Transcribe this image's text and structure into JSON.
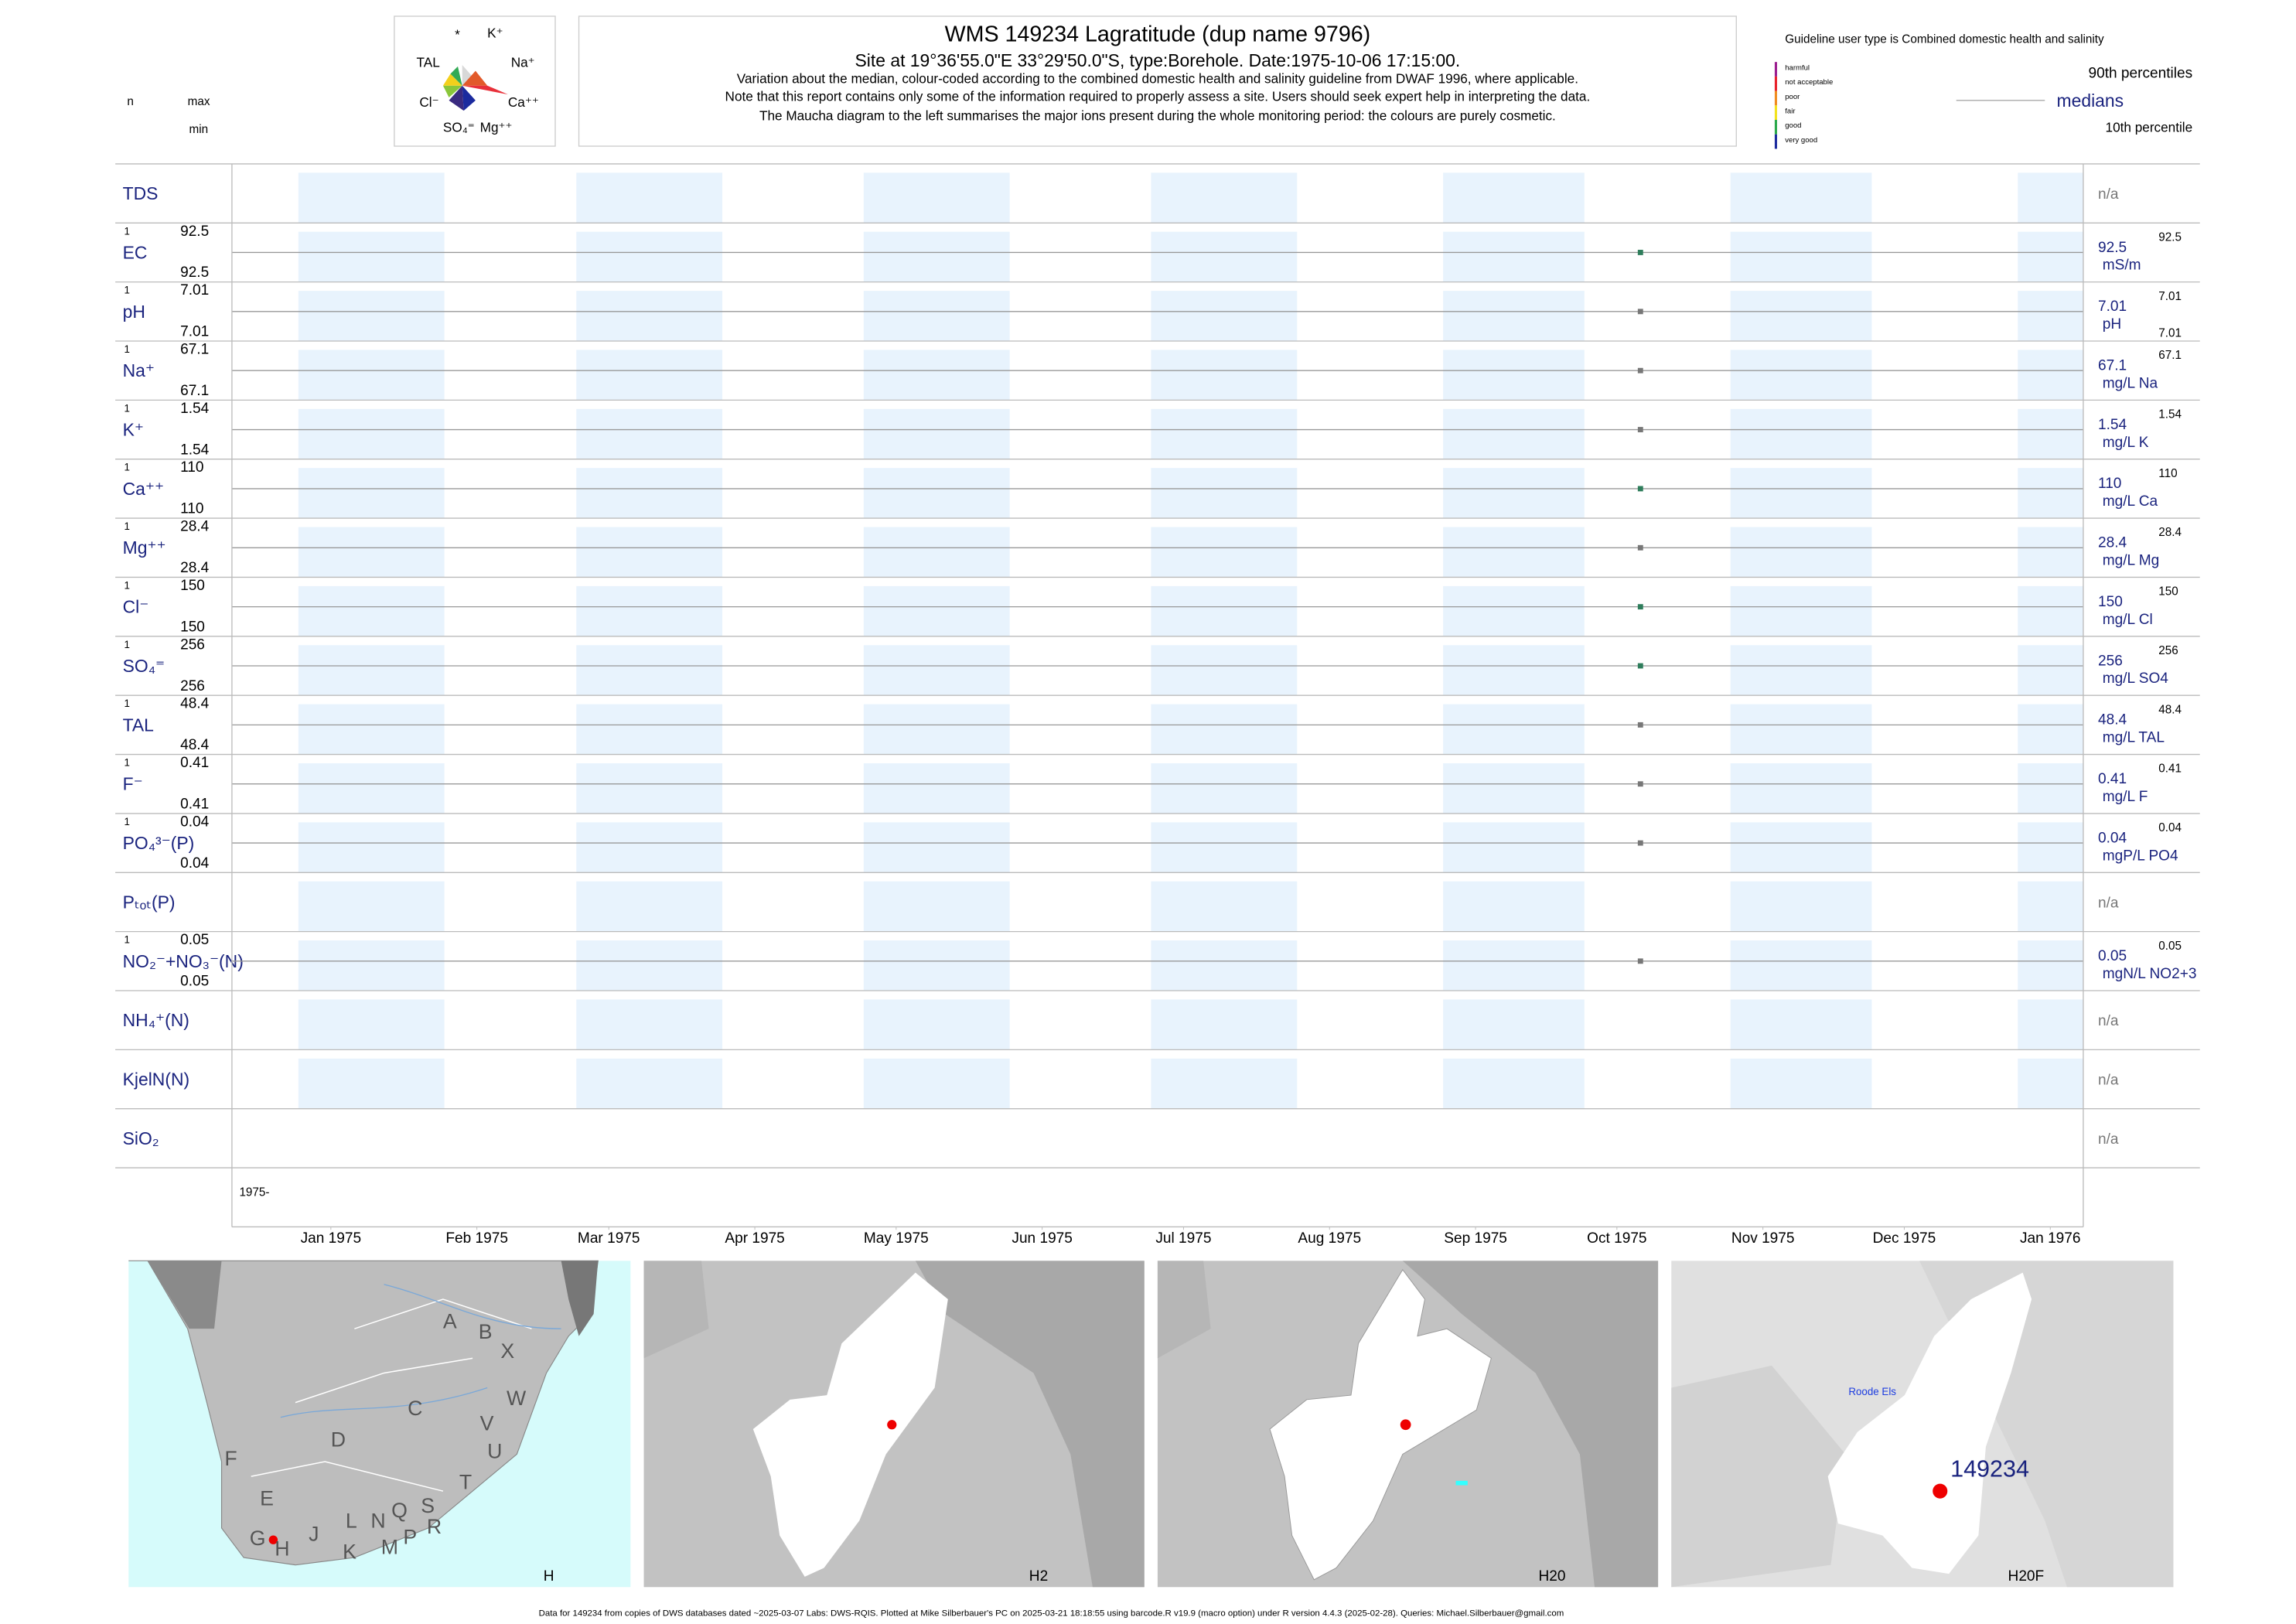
{
  "header": {
    "title": "WMS 149234  Lagratitude (dup name 9796)",
    "subtitle": "Site at 19°36'55.0\"E 33°29'50.0\"S, type:Borehole. Date:1975-10-06 17:15:00.",
    "notes": [
      "Variation about the median,  colour-coded according to the combined domestic health and salinity guideline from DWAF 1996, where applicable.",
      "Note that this report contains only some of the information required to properly assess a site. Users should seek expert help in interpreting the data.",
      "The Maucha diagram to the left summarises the major ions present during the whole monitoring period: the colours are purely cosmetic."
    ],
    "col_n": "n",
    "col_max": "max",
    "col_min": "min"
  },
  "maucha": {
    "labels": [
      "*",
      "K⁺",
      "TAL",
      "Na⁺",
      "Cl⁻",
      "Ca⁺⁺",
      "SO₄⁼",
      "Mg⁺⁺"
    ]
  },
  "guideline": {
    "title": "Guideline user type is Combined domestic health and salinity",
    "classes": [
      {
        "name": "harmful",
        "color": "#9b1d8f"
      },
      {
        "name": "not acceptable",
        "color": "#e8202a"
      },
      {
        "name": "poor",
        "color": "#f08c1e"
      },
      {
        "name": "fair",
        "color": "#f3e21b"
      },
      {
        "name": "good",
        "color": "#2aa84a"
      },
      {
        "name": "very good",
        "color": "#1b2a9e"
      }
    ],
    "p90": "90th percentiles",
    "median": "medians",
    "p10": "10th percentile"
  },
  "chart_data": {
    "type": "panels",
    "xlim": [
      "1974-12-11",
      "1976-01-08"
    ],
    "xticks": [
      {
        "value": "1975-01-01",
        "label": "Jan 1975"
      },
      {
        "value": "1975-02-01",
        "label": "Feb 1975"
      },
      {
        "value": "1975-03-01",
        "label": "Mar 1975"
      },
      {
        "value": "1975-04-01",
        "label": "Apr 1975"
      },
      {
        "value": "1975-05-01",
        "label": "May 1975"
      },
      {
        "value": "1975-06-01",
        "label": "Jun 1975"
      },
      {
        "value": "1975-07-01",
        "label": "Jul 1975"
      },
      {
        "value": "1975-08-01",
        "label": "Aug 1975"
      },
      {
        "value": "1975-09-01",
        "label": "Sep 1975"
      },
      {
        "value": "1975-10-01",
        "label": "Oct 1975"
      },
      {
        "value": "1975-11-01",
        "label": "Nov 1975"
      },
      {
        "value": "1975-12-01",
        "label": "Dec 1975"
      },
      {
        "value": "1976-01-01",
        "label": "Jan 1976"
      }
    ],
    "year_label": "1975-",
    "sample_date": "1975-10-06",
    "rows": [
      {
        "name": "TDS",
        "na": "n/a"
      },
      {
        "name": "EC",
        "n": 1,
        "max": 92.5,
        "min": 92.5,
        "median": 92.5,
        "unit": "mS/m",
        "p90": 92.5,
        "color": "#2e7d5b"
      },
      {
        "name": "pH",
        "n": 1,
        "max": 7.01,
        "min": 7.01,
        "median": 7.01,
        "unit": "pH",
        "p90": 7.01,
        "p10": 7.01,
        "color": "#777777"
      },
      {
        "name": "Na⁺",
        "n": 1,
        "max": 67.1,
        "min": 67.1,
        "median": 67.1,
        "unit": "mg/L Na",
        "p90": 67.1,
        "color": "#777777"
      },
      {
        "name": "K⁺",
        "n": 1,
        "max": 1.54,
        "min": 1.54,
        "median": 1.54,
        "unit": "mg/L K",
        "p90": 1.54,
        "color": "#777777"
      },
      {
        "name": "Ca⁺⁺",
        "n": 1,
        "max": 110,
        "min": 110,
        "median": 110,
        "unit": "mg/L Ca",
        "p90": 110,
        "color": "#2e7d5b"
      },
      {
        "name": "Mg⁺⁺",
        "n": 1,
        "max": 28.4,
        "min": 28.4,
        "median": 28.4,
        "unit": "mg/L Mg",
        "p90": 28.4,
        "color": "#777777"
      },
      {
        "name": "Cl⁻",
        "n": 1,
        "max": 150,
        "min": 150,
        "median": 150,
        "unit": "mg/L Cl",
        "p90": 150,
        "color": "#2e7d5b"
      },
      {
        "name": "SO₄⁼",
        "n": 1,
        "max": 256,
        "min": 256,
        "median": 256,
        "unit": "mg/L SO4",
        "p90": 256,
        "color": "#2e7d5b"
      },
      {
        "name": "TAL",
        "n": 1,
        "max": 48.4,
        "min": 48.4,
        "median": 48.4,
        "unit": "mg/L TAL",
        "p90": 48.4,
        "color": "#777777"
      },
      {
        "name": "F⁻",
        "n": 1,
        "max": 0.41,
        "min": 0.41,
        "median": 0.41,
        "unit": "mg/L F",
        "p90": 0.41,
        "color": "#777777"
      },
      {
        "name": "PO₄³⁻(P)",
        "n": 1,
        "max": 0.04,
        "min": 0.04,
        "median": 0.04,
        "unit": "mgP/L PO4",
        "p90": 0.04,
        "color": "#777777"
      },
      {
        "name": "Pₜₒₜ(P)",
        "na": "n/a"
      },
      {
        "name": "NO₂⁻+NO₃⁻(N)",
        "n": 1,
        "max": 0.05,
        "min": 0.05,
        "median": 0.05,
        "unit": "mgN/L NO2+3",
        "p90": 0.05,
        "color": "#777777"
      },
      {
        "name": "NH₄⁺(N)",
        "na": "n/a"
      },
      {
        "name": "KjelN(N)",
        "na": "n/a"
      },
      {
        "name": "SiO₂",
        "na": "n/a",
        "no_bands": true
      }
    ]
  },
  "maps": {
    "panels": [
      "H",
      "H2",
      "H20",
      "H20F"
    ],
    "regions": [
      "A",
      "B",
      "X",
      "W",
      "C",
      "V",
      "U",
      "D",
      "F",
      "E",
      "T",
      "G",
      "H",
      "J",
      "L",
      "N",
      "Q",
      "S",
      "R",
      "K",
      "M",
      "P"
    ],
    "site": "149234",
    "place": "Roode Els"
  },
  "footer": "Data for 149234 from copies of DWS databases dated ~2025-03-07 Labs: DWS-RQIS. Plotted at Mike Silberbauer's PC on 2025-03-21 18:18:55 using barcode.R v19.9 (macro option) under R version 4.4.3 (2025-02-28). Queries: Michael.Silberbauer@gmail.com"
}
